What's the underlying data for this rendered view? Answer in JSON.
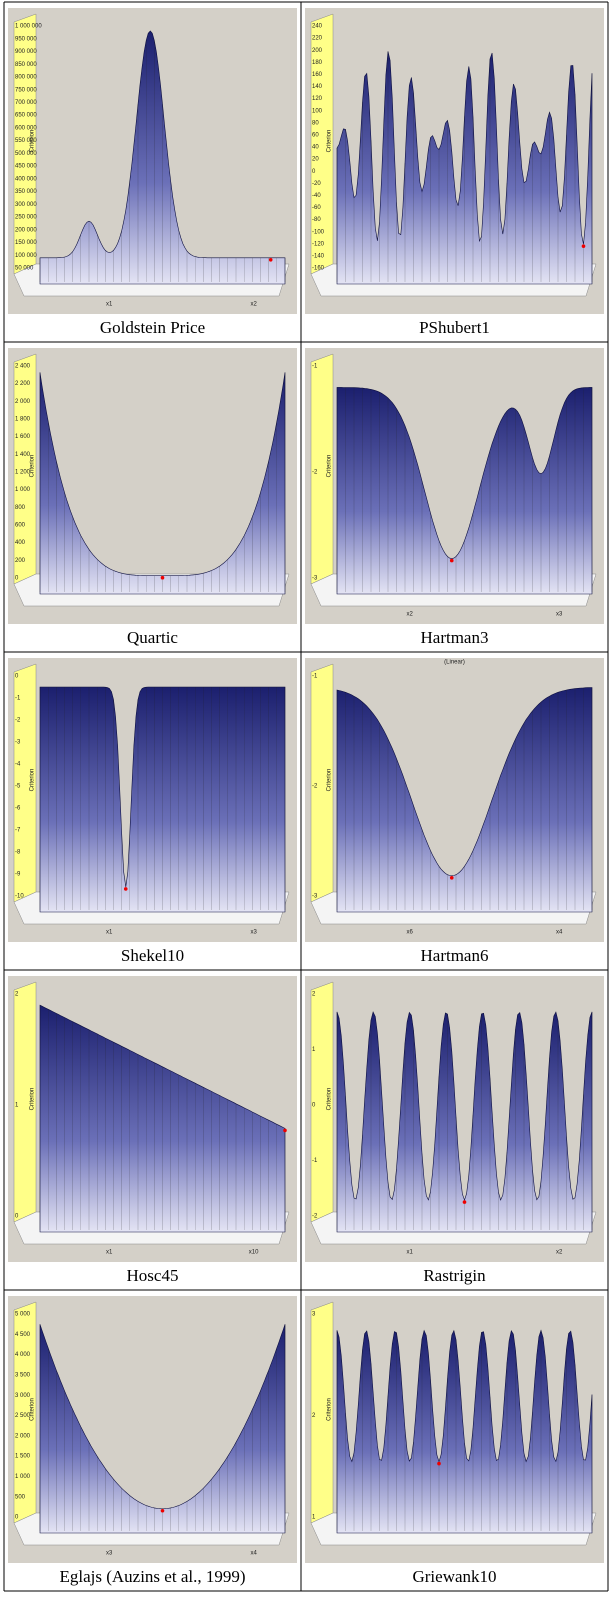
{
  "panels": [
    {
      "caption": "Goldstein Price",
      "y_axis_label": "Criterion",
      "y_ticks": [
        "1 000 000",
        "950 000",
        "900 000",
        "850 000",
        "800 000",
        "750 000",
        "700 000",
        "650 000",
        "600 000",
        "550 000",
        "500 000",
        "450 000",
        "400 000",
        "350 000",
        "300 000",
        "250 000",
        "200 000",
        "150 000",
        "100 000",
        "50 000"
      ],
      "axis_labels": [
        "x1",
        "x2"
      ]
    },
    {
      "caption": "PShubert1",
      "y_axis_label": "Criterion",
      "y_ticks": [
        "240",
        "220",
        "200",
        "180",
        "160",
        "140",
        "120",
        "100",
        "80",
        "60",
        "40",
        "20",
        "0",
        "-20",
        "-40",
        "-60",
        "-80",
        "-100",
        "-120",
        "-140",
        "-160"
      ],
      "axis_labels": []
    },
    {
      "caption": "Quartic",
      "y_axis_label": "Criterion",
      "y_ticks": [
        "2 400",
        "2 200",
        "2 000",
        "1 800",
        "1 600",
        "1 400",
        "1 200",
        "1 000",
        "800",
        "600",
        "400",
        "200",
        "0"
      ],
      "axis_labels": []
    },
    {
      "caption": "Hartman3",
      "y_axis_label": "Criterion",
      "y_ticks": [
        "-1",
        "-2",
        "-3"
      ],
      "axis_labels": [
        "x2",
        "x3"
      ]
    },
    {
      "caption": "Shekel10",
      "y_axis_label": "Criterion",
      "y_ticks": [
        "0",
        "-1",
        "-2",
        "-3",
        "-4",
        "-5",
        "-6",
        "-7",
        "-8",
        "-9",
        "-10"
      ],
      "axis_labels": [
        "x1",
        "x3"
      ]
    },
    {
      "caption": "Hartman6",
      "y_axis_label": "Criterion",
      "y_ticks": [
        "-1",
        "-2",
        "-3"
      ],
      "axis_labels": [
        "x6",
        "x4"
      ],
      "plot_note": "(Linear)"
    },
    {
      "caption": "Hosc45",
      "y_axis_label": "Criterion",
      "y_ticks": [
        "2",
        "1",
        "0"
      ],
      "axis_labels": [
        "x1",
        "x10"
      ]
    },
    {
      "caption": "Rastrigin",
      "y_axis_label": "Criterion",
      "y_ticks": [
        "2",
        "1",
        "0",
        "-1",
        "-2"
      ],
      "axis_labels": [
        "x1",
        "x2"
      ]
    },
    {
      "caption": "Eglajs (Auzins et al., 1999)",
      "y_axis_label": "Criterion",
      "y_ticks": [
        "5 000",
        "4 500",
        "4 000",
        "3 500",
        "3 000",
        "2 500",
        "2 000",
        "1 500",
        "1 000",
        "500",
        "0"
      ],
      "axis_labels": [
        "x3",
        "x4"
      ]
    },
    {
      "caption": "Griewank10",
      "y_axis_label": "Criterion",
      "y_ticks": [
        "3",
        "2",
        "1"
      ],
      "axis_labels": []
    }
  ]
}
